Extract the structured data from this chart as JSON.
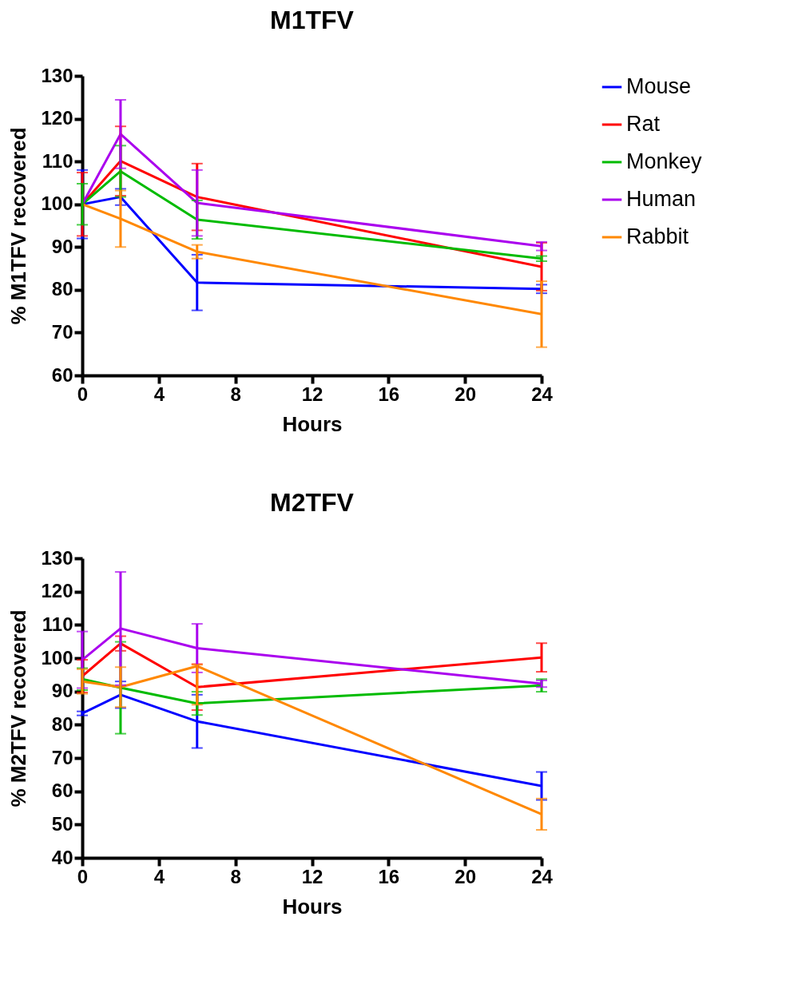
{
  "chart_data": [
    {
      "type": "line",
      "title": "M1TFV",
      "xlabel": "Hours",
      "ylabel": "% M1TFV recovered",
      "x": [
        0,
        2,
        6,
        24
      ],
      "xlim": [
        0,
        24
      ],
      "xticks": [
        0,
        4,
        8,
        12,
        16,
        20,
        24
      ],
      "ylim": [
        60,
        130
      ],
      "yticks": [
        60,
        70,
        80,
        90,
        100,
        110,
        120,
        130
      ],
      "grid": false,
      "legend": "right",
      "marker": "none",
      "line_style": "solid",
      "series": [
        {
          "name": "Mouse",
          "color": "#0000ff",
          "values": [
            100,
            101.7,
            81.7,
            80.2
          ],
          "errors": [
            [
              92,
              108
            ],
            [
              99.8,
              103.6
            ],
            [
              75.2,
              88.2
            ],
            [
              79.2,
              81.2
            ]
          ]
        },
        {
          "name": "Rat",
          "color": "#ff0000",
          "values": [
            100,
            110.1,
            101.7,
            85.4
          ],
          "errors": [
            [
              92.6,
              107.4
            ],
            [
              102,
              118.2
            ],
            [
              93.9,
              109.5
            ],
            [
              79.8,
              91
            ]
          ]
        },
        {
          "name": "Monkey",
          "color": "#00bb00",
          "values": [
            100,
            107.7,
            96.4,
            87.3
          ],
          "errors": [
            [
              95.2,
              104.8
            ],
            [
              101.7,
              113.7
            ],
            [
              91.9,
              100.9
            ],
            [
              86.7,
              87.9
            ]
          ]
        },
        {
          "name": "Human",
          "color": "#aa00ee",
          "values": [
            100,
            116.4,
            100.3,
            90.2
          ],
          "errors": [
            null,
            [
              108.4,
              124.4
            ],
            [
              92.6,
              108
            ],
            [
              89.2,
              91.2
            ]
          ]
        },
        {
          "name": "Rabbit",
          "color": "#ff8800",
          "values": [
            100,
            96.6,
            88.9,
            74.3
          ],
          "errors": [
            null,
            [
              90,
              103.2
            ],
            [
              87.3,
              90.5
            ],
            [
              66.6,
              82
            ]
          ]
        }
      ]
    },
    {
      "type": "line",
      "title": "M2TFV",
      "xlabel": "Hours",
      "ylabel": "% M2TFV recovered",
      "x": [
        0,
        2,
        6,
        24
      ],
      "xlim": [
        0,
        24
      ],
      "xticks": [
        0,
        4,
        8,
        12,
        16,
        20,
        24
      ],
      "ylim": [
        40,
        130
      ],
      "yticks": [
        40,
        50,
        60,
        70,
        80,
        90,
        100,
        110,
        120,
        130
      ],
      "grid": false,
      "legend": "right",
      "marker": "none",
      "line_style": "solid",
      "series": [
        {
          "name": "Mouse",
          "color": "#0000ff",
          "values": [
            83.4,
            89,
            81,
            61.6
          ],
          "errors": [
            [
              82.8,
              84
            ],
            [
              85,
              93
            ],
            [
              73,
              89
            ],
            [
              57.4,
              65.8
            ]
          ]
        },
        {
          "name": "Rat",
          "color": "#ff0000",
          "values": [
            94.6,
            104.4,
            91.3,
            100.2
          ],
          "errors": [
            [
              89.7,
              99.5
            ],
            [
              102.2,
              106.6
            ],
            [
              84.4,
              98.2
            ],
            [
              95.9,
              104.5
            ]
          ]
        },
        {
          "name": "Monkey",
          "color": "#00bb00",
          "values": [
            93.7,
            91.1,
            86.4,
            91.8
          ],
          "errors": [
            [
              90.4,
              97
            ],
            [
              77.3,
              104.9
            ],
            [
              82.9,
              89.9
            ],
            [
              89.9,
              93.7
            ]
          ]
        },
        {
          "name": "Human",
          "color": "#aa00ee",
          "values": [
            99.5,
            108.9,
            103,
            92.3
          ],
          "errors": [
            [
              91,
              108
            ],
            [
              91.9,
              125.9
            ],
            [
              95.7,
              110.3
            ],
            [
              91.3,
              93.3
            ]
          ]
        },
        {
          "name": "Rabbit",
          "color": "#ff8800",
          "values": [
            93,
            91.3,
            97.6,
            53.1
          ],
          "errors": [
            [
              89.3,
              96.7
            ],
            [
              85.3,
              97.3
            ],
            [
              86,
              98
            ],
            [
              48.4,
              57.8
            ]
          ]
        }
      ]
    }
  ]
}
